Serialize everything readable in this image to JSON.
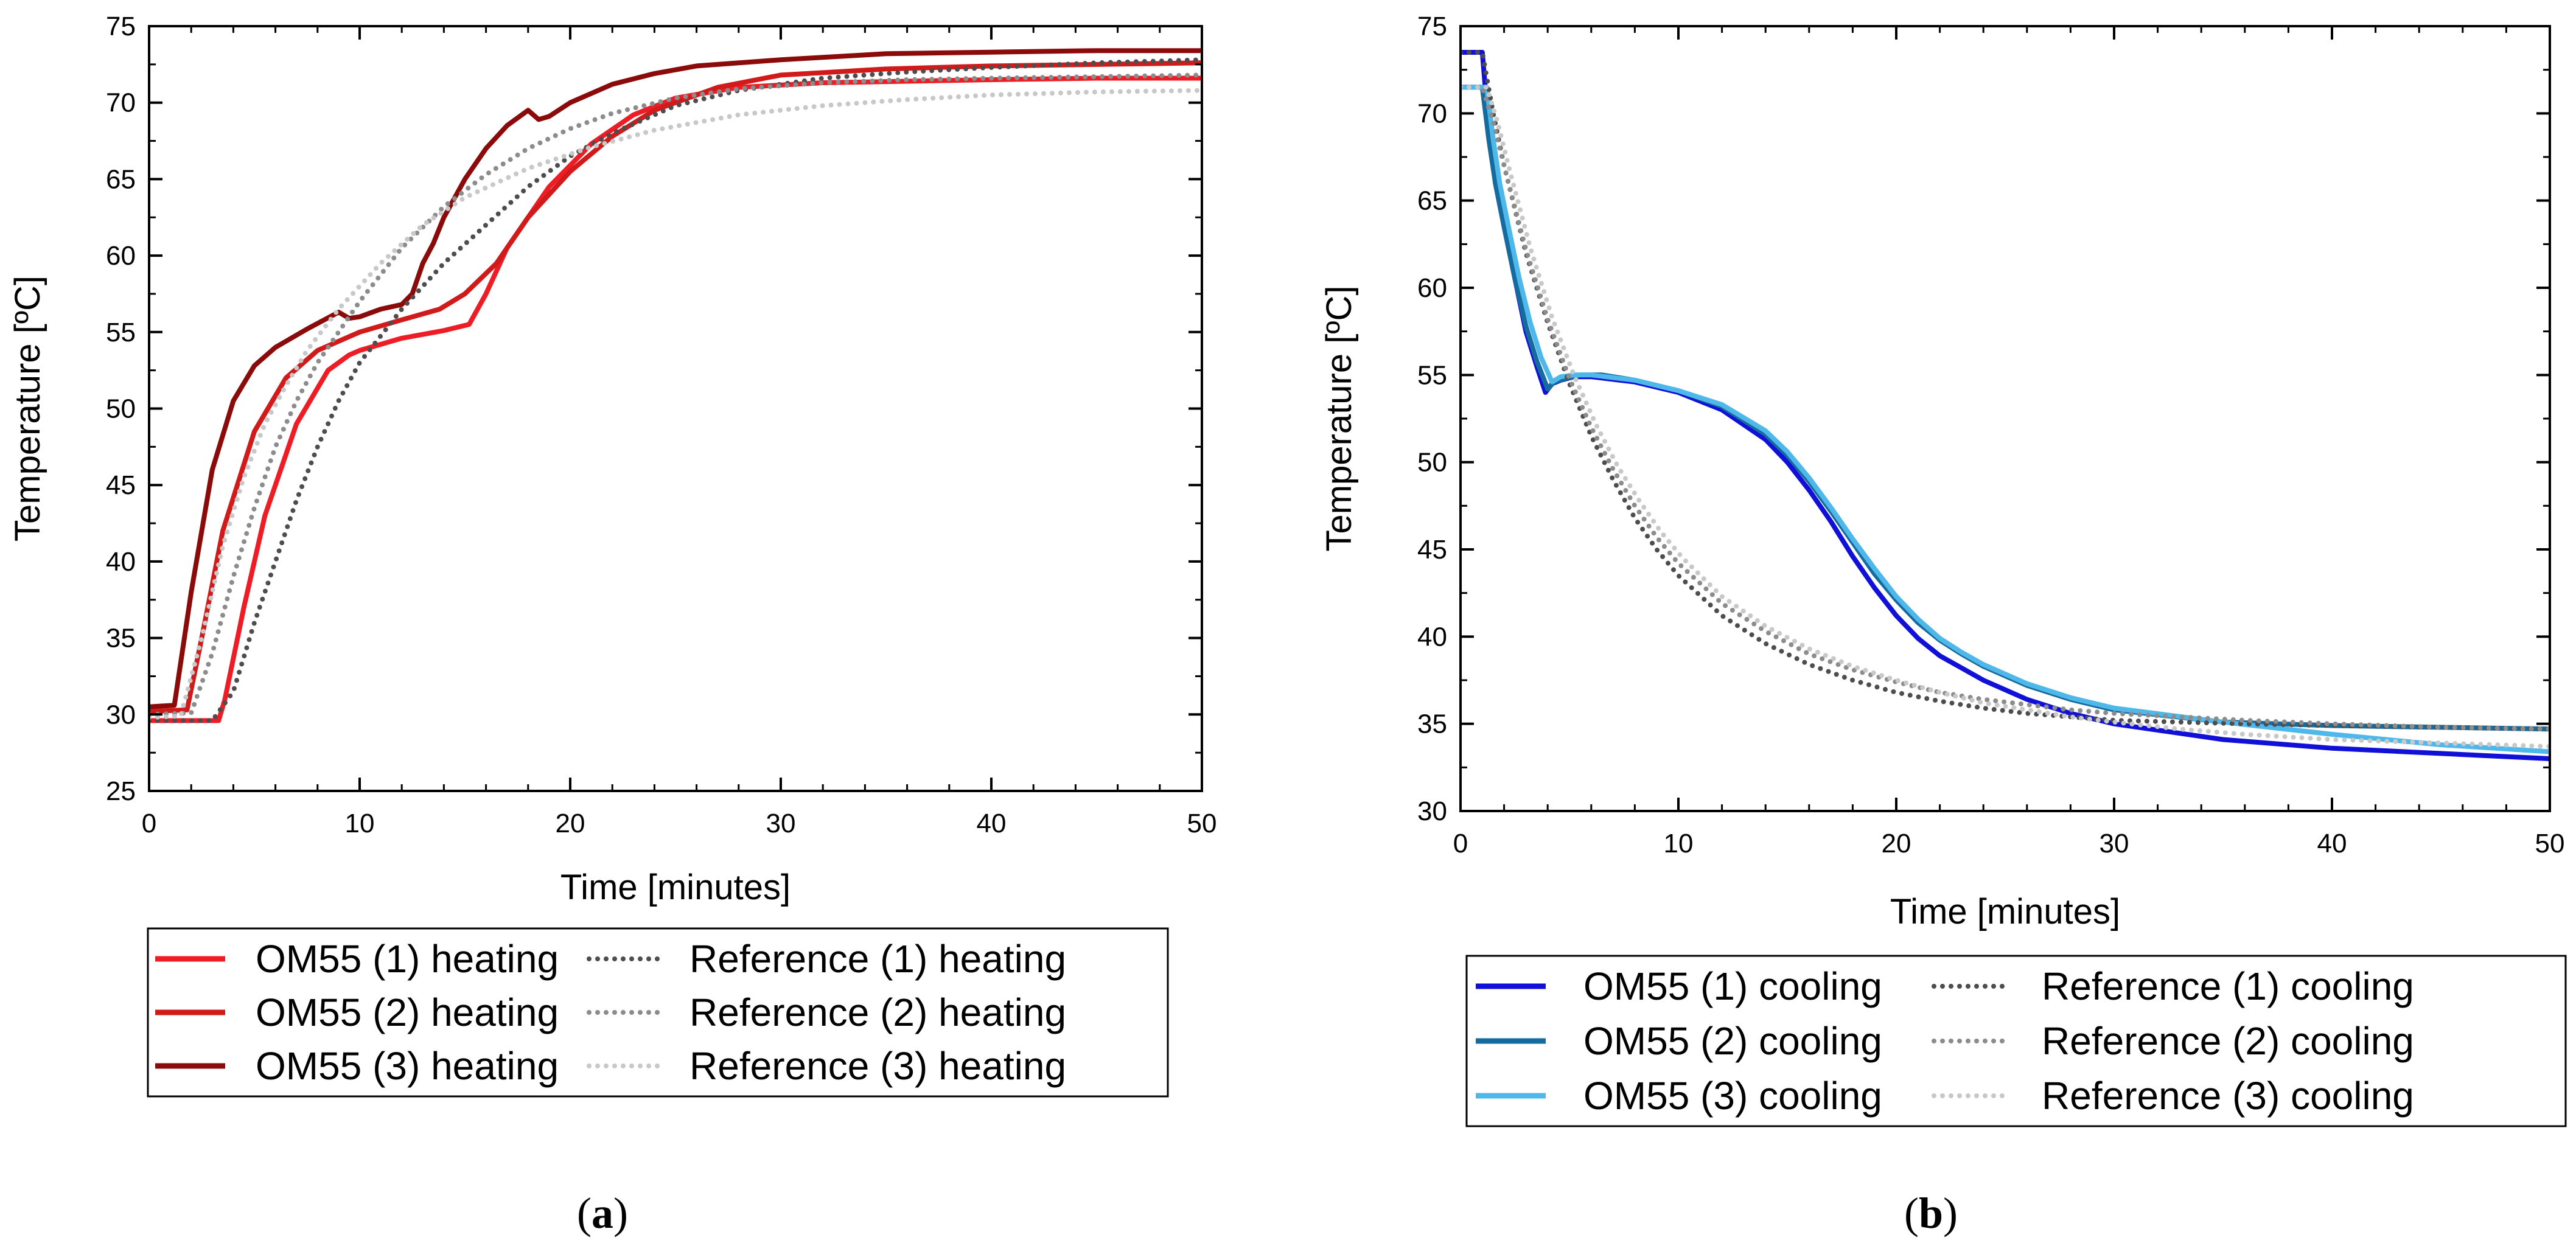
{
  "chart_data": [
    {
      "type": "line",
      "panel_caption": "(a)",
      "caption_parts": [
        "(",
        "a",
        ")"
      ],
      "xlabel": "Time [minutes]",
      "ylabel": "Temperature [ºC]",
      "xlim": [
        0,
        50
      ],
      "ylim": [
        25,
        75
      ],
      "x_ticks": [
        0,
        10,
        20,
        30,
        40,
        50
      ],
      "y_ticks": [
        25,
        30,
        35,
        40,
        45,
        50,
        55,
        60,
        65,
        70,
        75
      ],
      "grid": false,
      "legend_position": "below",
      "series": [
        {
          "name": "OM55 (1) heating",
          "color": "#ee1c25",
          "style": "solid",
          "x": [
            0,
            3.3,
            3.6,
            4.5,
            5.5,
            7,
            8.5,
            9.5,
            10,
            12,
            14,
            15.2,
            16,
            17,
            19,
            21,
            23,
            25,
            28,
            32,
            36,
            40,
            45,
            50
          ],
          "y": [
            29.6,
            29.6,
            31,
            37,
            43,
            49,
            52.5,
            53.5,
            53.8,
            54.6,
            55.1,
            55.5,
            57.5,
            60.5,
            64.5,
            67.3,
            69.2,
            70.3,
            71,
            71.3,
            71.4,
            71.5,
            71.6,
            71.6
          ]
        },
        {
          "name": "OM55 (2) heating",
          "color": "#d11a1a",
          "style": "solid",
          "x": [
            0,
            1.8,
            2.5,
            3.5,
            5,
            6.5,
            8,
            10,
            12,
            13.8,
            15,
            16.5,
            18,
            20,
            22,
            24,
            27,
            30,
            35,
            40,
            45,
            50
          ],
          "y": [
            30.2,
            30.3,
            35,
            42,
            48.5,
            52,
            53.8,
            55,
            55.8,
            56.5,
            57.5,
            59.5,
            62.5,
            65.5,
            67.8,
            69.5,
            71,
            71.8,
            72.2,
            72.4,
            72.5,
            72.6
          ]
        },
        {
          "name": "OM55 (3) heating",
          "color": "#8b0a0a",
          "style": "solid",
          "x": [
            0,
            1.2,
            2,
            3,
            4,
            5,
            6,
            7.5,
            9,
            9.5,
            10,
            11,
            12,
            12.5,
            13,
            13.5,
            14,
            15,
            16,
            17,
            18,
            18.5,
            19,
            20,
            22,
            24,
            26,
            30,
            35,
            40,
            45,
            50
          ],
          "y": [
            30.5,
            30.6,
            38,
            46,
            50.5,
            52.8,
            54,
            55.2,
            56.3,
            55.9,
            56,
            56.5,
            56.8,
            57.5,
            59.5,
            60.8,
            62.5,
            65,
            67,
            68.5,
            69.5,
            68.9,
            69.1,
            70,
            71.2,
            71.9,
            72.4,
            72.8,
            73.2,
            73.3,
            73.4,
            73.4
          ]
        },
        {
          "name": "Reference (1) heating",
          "color": "#4d4d4d",
          "style": "dotted",
          "x": [
            0,
            3,
            4,
            5,
            6,
            7,
            8,
            9,
            10,
            12,
            14,
            16,
            18,
            20,
            22,
            25,
            28,
            32,
            36,
            40,
            45,
            50
          ],
          "y": [
            29.6,
            29.6,
            31.5,
            36,
            40,
            44,
            47.5,
            50.5,
            53,
            56.5,
            59.5,
            62,
            64.5,
            66.5,
            68,
            69.8,
            70.8,
            71.6,
            72,
            72.3,
            72.6,
            72.8
          ]
        },
        {
          "name": "Reference (2) heating",
          "color": "#8c8c8c",
          "style": "dotted",
          "x": [
            0,
            2,
            3,
            4,
            5,
            6,
            7,
            8,
            9,
            10,
            12,
            14,
            16,
            18,
            20,
            22,
            25,
            28,
            32,
            36,
            40,
            45,
            50
          ],
          "y": [
            30,
            30.1,
            34,
            39,
            43.5,
            47.5,
            50.5,
            53,
            55,
            57,
            60.5,
            63.2,
            65.3,
            67,
            68.3,
            69.3,
            70.3,
            70.9,
            71.3,
            71.5,
            71.6,
            71.7,
            71.8
          ]
        },
        {
          "name": "Reference (3) heating",
          "color": "#c8c8c8",
          "style": "dotted",
          "x": [
            0,
            1.5,
            2.5,
            3.5,
            4.5,
            5.5,
            6.5,
            7.5,
            9,
            11,
            13,
            15,
            18,
            21,
            24,
            28,
            32,
            36,
            40,
            45,
            50
          ],
          "y": [
            29.8,
            29.9,
            35,
            41,
            45.5,
            49,
            51.5,
            53.8,
            56.5,
            59.5,
            62,
            63.8,
            65.7,
            67.1,
            68.2,
            69.2,
            69.8,
            70.2,
            70.5,
            70.7,
            70.8
          ]
        }
      ]
    },
    {
      "type": "line",
      "panel_caption": "(b)",
      "caption_parts": [
        "(",
        "b",
        ")"
      ],
      "xlabel": "Time [minutes]",
      "ylabel": "Temperature [ºC]",
      "xlim": [
        0,
        50
      ],
      "ylim": [
        30,
        75
      ],
      "x_ticks": [
        0,
        10,
        20,
        30,
        40,
        50
      ],
      "y_ticks": [
        30,
        35,
        40,
        45,
        50,
        55,
        60,
        65,
        70,
        75
      ],
      "grid": false,
      "legend_position": "below",
      "series": [
        {
          "name": "OM55 (1) cooling",
          "color": "#1010d8",
          "style": "solid",
          "x": [
            0,
            1,
            1.3,
            1.6,
            2,
            2.5,
            3,
            3.5,
            3.9,
            4.2,
            4.6,
            5.2,
            6,
            8,
            10,
            12,
            14,
            15,
            16,
            17,
            18,
            19,
            20,
            21,
            22,
            23,
            24,
            26,
            28,
            30,
            35,
            40,
            45,
            50
          ],
          "y": [
            73.5,
            73.5,
            69,
            66,
            63.5,
            60.5,
            57.5,
            55.5,
            54,
            54.5,
            54.7,
            54.9,
            54.9,
            54.6,
            54,
            53,
            51.3,
            50,
            48.4,
            46.6,
            44.6,
            42.8,
            41.2,
            39.9,
            38.9,
            38.2,
            37.5,
            36.4,
            35.6,
            35,
            34.1,
            33.6,
            33.3,
            33
          ]
        },
        {
          "name": "OM55 (2) cooling",
          "color": "#156a9e",
          "style": "solid",
          "x": [
            0,
            1,
            1.3,
            1.6,
            2,
            2.5,
            3,
            3.5,
            4,
            4.3,
            4.8,
            5.5,
            6.5,
            8,
            10,
            12,
            14,
            15,
            16,
            17,
            18,
            19,
            20,
            21,
            22,
            23,
            24,
            26,
            28,
            30,
            35,
            40,
            45,
            50
          ],
          "y": [
            71.5,
            71.5,
            68.5,
            66,
            63.5,
            60.5,
            57.8,
            55.8,
            54.2,
            54.6,
            54.8,
            55,
            55,
            54.7,
            54.1,
            53.2,
            51.6,
            50.4,
            48.9,
            47.2,
            45.4,
            43.6,
            42.1,
            40.8,
            39.8,
            39,
            38.3,
            37.2,
            36.4,
            35.8,
            35.1,
            34.9,
            34.8,
            34.7
          ]
        },
        {
          "name": "OM55 (3) cooling",
          "color": "#4fb8ea",
          "style": "solid",
          "x": [
            0,
            1.2,
            1.5,
            1.8,
            2.2,
            2.7,
            3.2,
            3.7,
            4.2,
            4.6,
            5.2,
            6,
            8,
            10,
            12,
            14,
            15,
            16,
            17,
            18,
            19,
            20,
            21,
            22,
            23,
            24,
            26,
            28,
            30,
            35,
            40,
            45,
            50
          ],
          "y": [
            71.5,
            71.5,
            68.5,
            66,
            63.5,
            60.5,
            58,
            56,
            54.6,
            54.9,
            55,
            55,
            54.7,
            54.1,
            53.3,
            51.8,
            50.6,
            49.1,
            47.4,
            45.6,
            43.9,
            42.3,
            41,
            39.9,
            39.1,
            38.4,
            37.3,
            36.5,
            35.9,
            35.1,
            34.4,
            33.8,
            33.4
          ]
        },
        {
          "name": "Reference (1) cooling",
          "color": "#4d4d4d",
          "style": "dotted",
          "x": [
            0,
            1,
            1.5,
            2,
            3,
            4,
            5,
            6,
            7,
            8,
            9,
            10,
            12,
            14,
            16,
            18,
            20,
            22,
            24,
            26,
            28,
            30,
            33,
            36,
            40,
            45,
            50
          ],
          "y": [
            73.5,
            73.5,
            70,
            67,
            62,
            58,
            54.5,
            51.5,
            49,
            46.8,
            45,
            43.5,
            41.2,
            39.6,
            38.4,
            37.5,
            36.8,
            36.3,
            35.9,
            35.6,
            35.4,
            35.2,
            35.1,
            35,
            34.9,
            34.8,
            34.7
          ]
        },
        {
          "name": "Reference (2) cooling",
          "color": "#8c8c8c",
          "style": "dotted",
          "x": [
            0,
            1,
            1.5,
            2,
            3,
            4,
            5,
            6,
            7,
            8,
            9,
            10,
            12,
            14,
            16,
            18,
            20,
            22,
            24,
            26,
            28,
            30,
            33,
            36,
            40,
            45,
            50
          ],
          "y": [
            71.5,
            71.5,
            69.5,
            67,
            62.2,
            58.2,
            54.8,
            52,
            49.6,
            47.5,
            45.7,
            44.2,
            41.9,
            40.3,
            39,
            38.1,
            37.4,
            36.8,
            36.4,
            36.1,
            35.8,
            35.6,
            35.4,
            35.2,
            35,
            34.8,
            34.7
          ]
        },
        {
          "name": "Reference (3) cooling",
          "color": "#c8c8c8",
          "style": "dotted",
          "x": [
            0,
            1.2,
            1.7,
            2.2,
            3.2,
            4.2,
            5.2,
            6.2,
            7.2,
            8.2,
            9.2,
            10.2,
            12,
            14,
            16,
            18,
            20,
            22,
            24,
            26,
            28,
            30,
            33,
            36,
            40,
            45,
            50
          ],
          "y": [
            71.5,
            71.5,
            69.5,
            67,
            62.3,
            58.3,
            55,
            52.2,
            49.8,
            47.8,
            46,
            44.5,
            42.3,
            40.6,
            39.3,
            38.3,
            37.5,
            36.8,
            36.2,
            35.8,
            35.4,
            35.1,
            34.7,
            34.4,
            34.1,
            33.9,
            33.7
          ]
        }
      ]
    }
  ]
}
